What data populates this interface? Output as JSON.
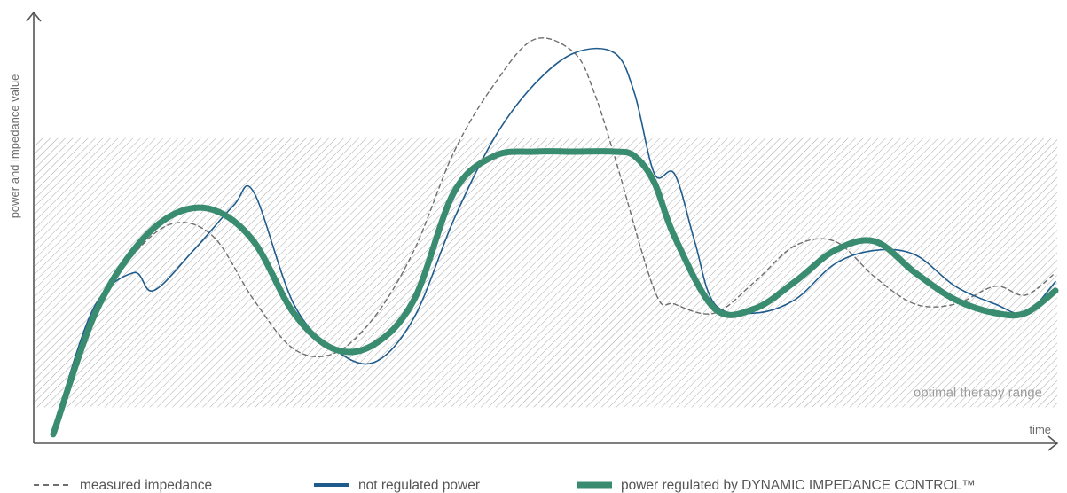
{
  "chart_data": {
    "type": "line",
    "title": "",
    "xlabel": "time",
    "ylabel": "power and impedance value",
    "xlim": [
      0,
      100
    ],
    "ylim": [
      0,
      100
    ],
    "grid": false,
    "legend_position": "bottom",
    "band": {
      "label": "optimal therapy range",
      "y_range": [
        10,
        70
      ],
      "pattern": "diagonal-hatch",
      "color": "#b0b0b0"
    },
    "series": [
      {
        "name": "measured impedance",
        "style": "dashed",
        "color": "#6e6e6e",
        "x": [
          0,
          4,
          8,
          12,
          16,
          20,
          24,
          28,
          32,
          36,
          40,
          44,
          48,
          52,
          54,
          56,
          60,
          62,
          66,
          70,
          74,
          78,
          82,
          86,
          90,
          94,
          97,
          100
        ],
        "y": [
          5,
          30,
          44,
          51,
          48,
          34,
          23,
          22,
          30,
          45,
          67,
          82,
          92,
          89,
          80,
          66,
          36,
          33,
          31,
          38,
          46,
          47,
          39,
          33,
          33,
          37,
          35,
          40
        ]
      },
      {
        "name": "not regulated power",
        "style": "solid",
        "color": "#1f5c8e",
        "x": [
          0,
          4,
          8,
          10,
          14,
          18,
          20,
          24,
          28,
          32,
          36,
          40,
          44,
          48,
          52,
          56,
          58,
          60,
          62,
          64,
          66,
          70,
          74,
          78,
          82,
          86,
          90,
          94,
          97,
          100
        ],
        "y": [
          5,
          32,
          40,
          36,
          45,
          55,
          58,
          33,
          23,
          20,
          30,
          52,
          70,
          82,
          89,
          89,
          80,
          62,
          62,
          47,
          33,
          31,
          34,
          42,
          45,
          44,
          37,
          33,
          31,
          38
        ]
      },
      {
        "name": "power regulated by DYNAMIC IMPEDANCE CONTROL™",
        "style": "thick",
        "color": "#3a8c70",
        "x": [
          0,
          4,
          8,
          12,
          16,
          20,
          24,
          28,
          32,
          36,
          40,
          44,
          48,
          52,
          56,
          58,
          60,
          62,
          66,
          70,
          74,
          78,
          82,
          86,
          90,
          94,
          97,
          100
        ],
        "y": [
          4,
          30,
          45,
          53,
          54,
          47,
          31,
          23,
          24,
          34,
          58,
          66,
          67,
          67,
          67,
          66,
          60,
          48,
          32,
          32,
          38,
          45,
          47,
          40,
          34,
          31,
          31,
          36
        ]
      }
    ]
  }
}
